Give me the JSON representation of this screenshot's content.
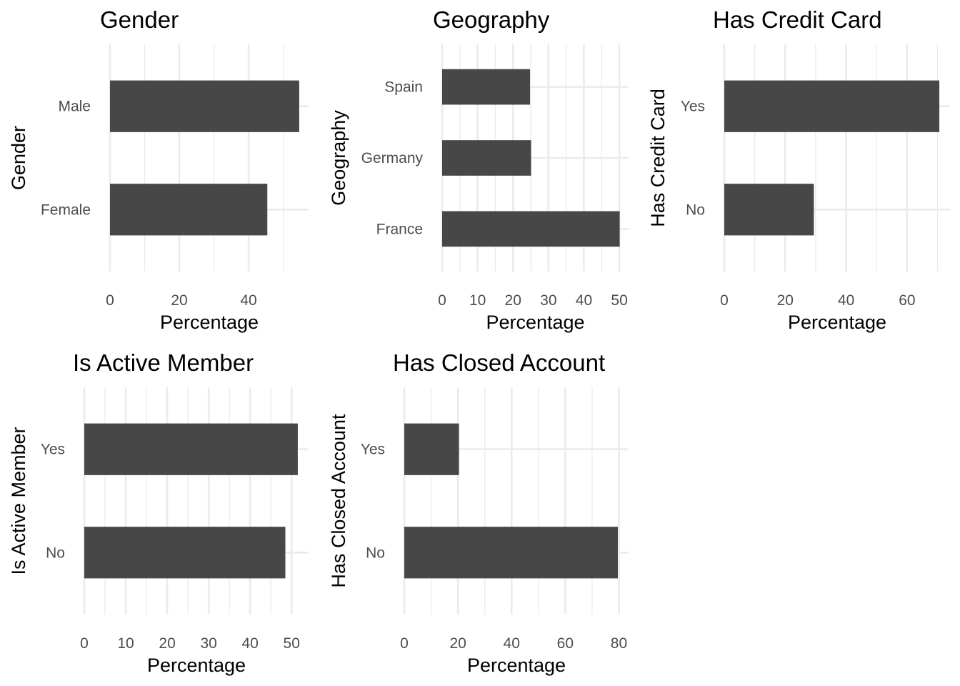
{
  "chart_data": [
    {
      "type": "bar",
      "orientation": "horizontal",
      "title": "Gender",
      "xlabel": "Percentage",
      "ylabel": "Gender",
      "categories": [
        "Female",
        "Male"
      ],
      "values": [
        45.4,
        54.6
      ],
      "xlim": [
        0,
        57.3
      ],
      "xticks": [
        0,
        20,
        40
      ],
      "bar_color": "#474747",
      "grid": true
    },
    {
      "type": "bar",
      "orientation": "horizontal",
      "title": "Geography",
      "xlabel": "Percentage",
      "ylabel": "Geography",
      "categories": [
        "France",
        "Germany",
        "Spain"
      ],
      "values": [
        50.1,
        25.1,
        24.8
      ],
      "xlim": [
        0,
        52.6
      ],
      "xticks": [
        0,
        10,
        20,
        30,
        40,
        50
      ],
      "bar_color": "#474747",
      "grid": true
    },
    {
      "type": "bar",
      "orientation": "horizontal",
      "title": "Has Credit Card",
      "xlabel": "Percentage",
      "ylabel": "Has Credit Card",
      "categories": [
        "No",
        "Yes"
      ],
      "values": [
        29.4,
        70.6
      ],
      "xlim": [
        0,
        74.1
      ],
      "xticks": [
        0,
        20,
        40,
        60
      ],
      "bar_color": "#474747",
      "grid": true
    },
    {
      "type": "bar",
      "orientation": "horizontal",
      "title": "Is Active Member",
      "xlabel": "Percentage",
      "ylabel": "Is Active Member",
      "categories": [
        "No",
        "Yes"
      ],
      "values": [
        48.5,
        51.5
      ],
      "xlim": [
        0,
        54.1
      ],
      "xticks": [
        0,
        10,
        20,
        30,
        40,
        50
      ],
      "bar_color": "#474747",
      "grid": true
    },
    {
      "type": "bar",
      "orientation": "horizontal",
      "title": "Has Closed Account",
      "xlabel": "Percentage",
      "ylabel": "Has Closed Account",
      "categories": [
        "No",
        "Yes"
      ],
      "values": [
        79.6,
        20.4
      ],
      "xlim": [
        0,
        83.6
      ],
      "xticks": [
        0,
        20,
        40,
        60,
        80
      ],
      "bar_color": "#474747",
      "grid": true
    }
  ]
}
